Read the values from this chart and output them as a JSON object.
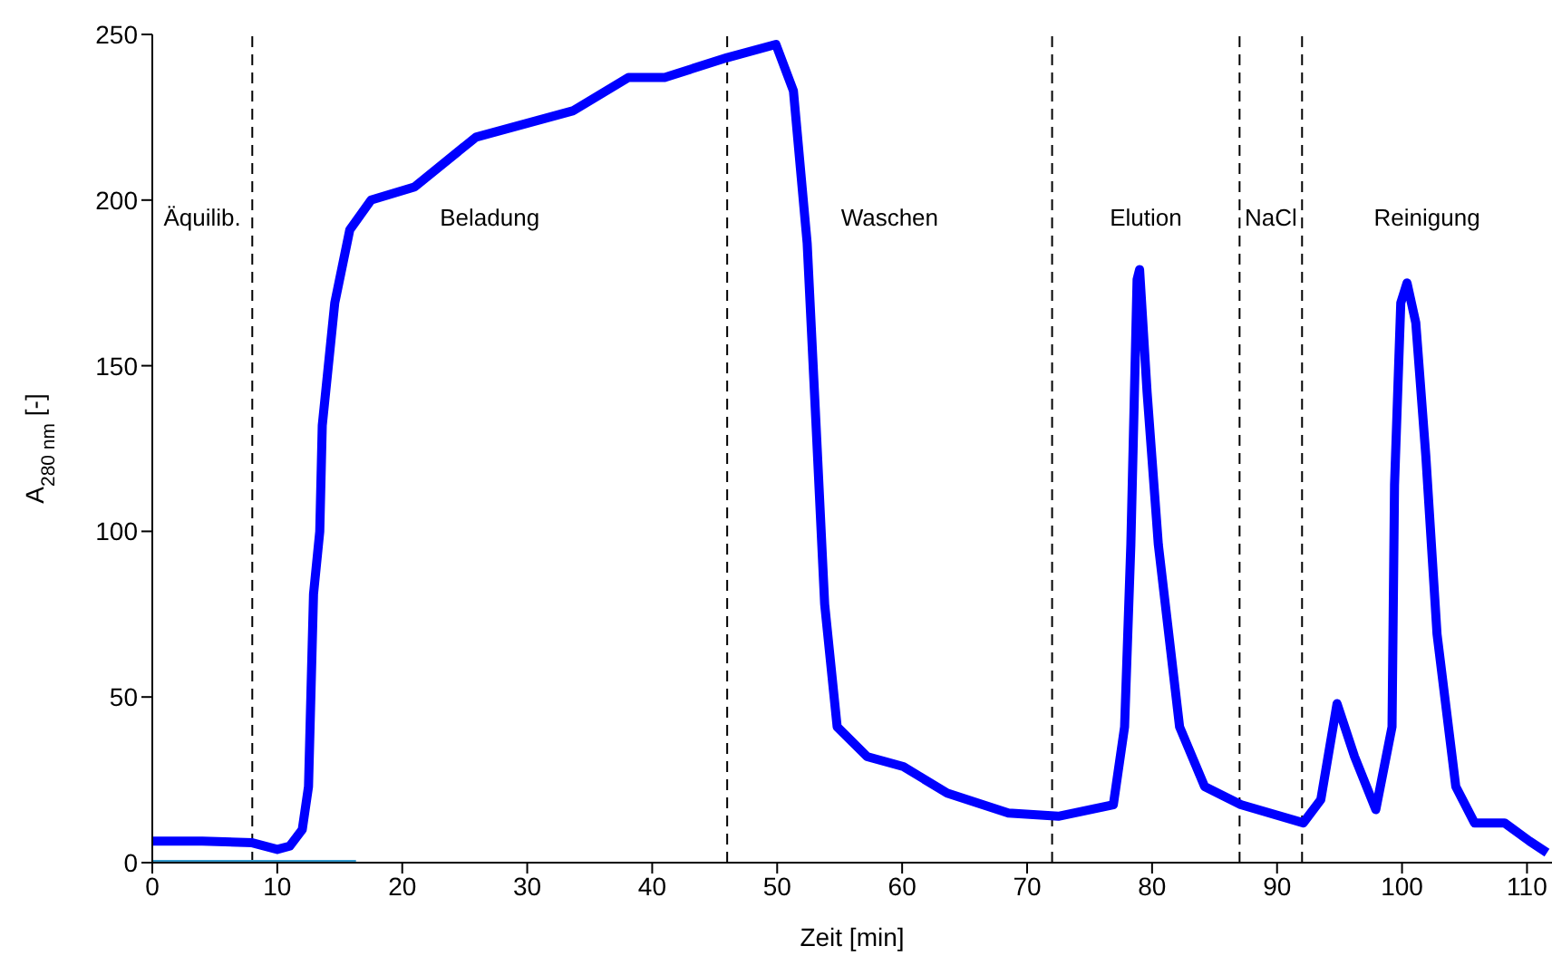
{
  "chart_data": {
    "type": "line",
    "xlabel": "Zeit [min]",
    "ylabel": "A$_{280 nm}$ [-]",
    "xlim": [
      0,
      112
    ],
    "xticks": [
      0,
      10,
      20,
      30,
      40,
      50,
      60,
      70,
      80,
      90,
      100,
      110
    ],
    "ylim": [
      0,
      250
    ],
    "yticks": [
      0,
      50,
      100,
      150,
      200,
      250
    ],
    "series": [
      {
        "color": "#0000ff",
        "x": [
          0,
          4,
          8,
          10,
          11,
          12,
          12.5,
          12.9,
          13.4,
          13.6,
          14.6,
          15.8,
          17.5,
          21,
          25.9,
          33.7,
          38.1,
          41,
          46,
          49.9,
          51.3,
          52.4,
          53.1,
          53.8,
          54.8,
          57.2,
          60.1,
          63.6,
          68.5,
          72.5,
          76.9,
          77.8,
          78.3,
          78.8,
          79,
          79.6,
          80.5,
          82.2,
          84.2,
          87.1,
          92.1,
          93.5,
          94.8,
          96.2,
          97.9,
          99.2,
          99.4,
          99.9,
          100.4,
          101.1,
          101.9,
          102.8,
          104.3,
          105.8,
          108.2,
          110.2,
          111.6
        ],
        "values": [
          6.5,
          6.5,
          6,
          4,
          5,
          10,
          23,
          81,
          100,
          132,
          169,
          191,
          200,
          204,
          219,
          227,
          237,
          237,
          243,
          247,
          233,
          187,
          133,
          78,
          41,
          32,
          29,
          21,
          15,
          14,
          17.5,
          41,
          96,
          176,
          179,
          142,
          96,
          41,
          23,
          17.5,
          12,
          19,
          48,
          32,
          16,
          41,
          114,
          169,
          175,
          163,
          123,
          69,
          23,
          12,
          12,
          6.5,
          3
        ]
      },
      {
        "color": "#3399cc",
        "x": [
          0,
          16.3
        ],
        "values": [
          0,
          0
        ]
      }
    ],
    "ref_lines": [
      {
        "axis": "x",
        "value": 8,
        "color": "#000000",
        "line_style": "dashed"
      },
      {
        "axis": "x",
        "value": 46,
        "color": "#000000",
        "line_style": "dashed"
      },
      {
        "axis": "x",
        "value": 72,
        "color": "#000000",
        "line_style": "dashed"
      },
      {
        "axis": "x",
        "value": 87,
        "color": "#000000",
        "line_style": "dashed"
      },
      {
        "axis": "x",
        "value": 92,
        "color": "#000000",
        "line_style": "dashed"
      }
    ],
    "annotations": [
      "Äquilib.",
      "Beladung",
      "Waschen",
      "Elution",
      "NaCl",
      "Reinigung"
    ]
  }
}
